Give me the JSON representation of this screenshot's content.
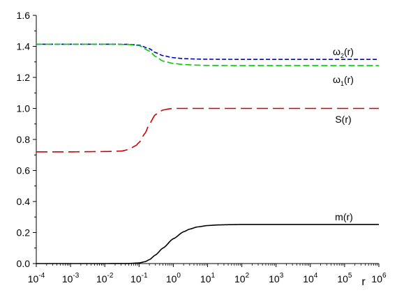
{
  "chart_data": {
    "type": "line",
    "x_scale": "log",
    "xlim": [
      0.0001,
      1000000
    ],
    "ylim": [
      0,
      1.6
    ],
    "grid": false,
    "xlabel": "r",
    "ylabel": "",
    "x_ticks": [
      {
        "base": "10",
        "exp": "-4"
      },
      {
        "base": "10",
        "exp": "-3"
      },
      {
        "base": "10",
        "exp": "-2"
      },
      {
        "base": "10",
        "exp": "-1"
      },
      {
        "base": "10",
        "exp": "0"
      },
      {
        "base": "10",
        "exp": "1"
      },
      {
        "base": "10",
        "exp": "2"
      },
      {
        "base": "10",
        "exp": "3"
      },
      {
        "base": "10",
        "exp": "4"
      },
      {
        "base": "10",
        "exp": "5"
      },
      {
        "base": "10",
        "exp": "6"
      }
    ],
    "y_ticks": [
      "0.0",
      "0.2",
      "0.4",
      "0.6",
      "0.8",
      "1.0",
      "1.2",
      "1.4",
      "1.6"
    ],
    "series": [
      {
        "name": "ω2(r)",
        "label_main": "ω",
        "label_sub": "2",
        "label_tail": "(r)",
        "color": "#0000cc",
        "dash": "6,3",
        "x": [
          0.0001,
          0.001,
          0.01,
          0.05,
          0.1,
          0.2,
          0.3,
          0.5,
          1,
          2,
          5,
          10,
          100,
          1000,
          10000,
          100000,
          1000000
        ],
        "y": [
          1.414,
          1.414,
          1.414,
          1.413,
          1.408,
          1.385,
          1.36,
          1.34,
          1.327,
          1.321,
          1.318,
          1.317,
          1.316,
          1.316,
          1.316,
          1.316,
          1.316
        ]
      },
      {
        "name": "ω1(r)",
        "label_main": "ω",
        "label_sub": "1",
        "label_tail": "(r)",
        "color": "#00cc00",
        "dash": "9,4",
        "x": [
          0.0001,
          0.001,
          0.01,
          0.05,
          0.1,
          0.2,
          0.3,
          0.5,
          1,
          2,
          5,
          10,
          100,
          1000,
          10000,
          100000,
          1000000
        ],
        "y": [
          1.414,
          1.414,
          1.414,
          1.412,
          1.405,
          1.37,
          1.335,
          1.305,
          1.29,
          1.283,
          1.279,
          1.277,
          1.276,
          1.276,
          1.276,
          1.276,
          1.276
        ]
      },
      {
        "name": "S(r)",
        "label_main": "S(r)",
        "label_sub": "",
        "label_tail": "",
        "color": "#cc0000",
        "dash": "16,7",
        "x": [
          0.0001,
          0.001,
          0.01,
          0.03,
          0.05,
          0.08,
          0.1,
          0.15,
          0.2,
          0.3,
          0.5,
          0.8,
          1,
          10,
          100,
          1000,
          10000,
          100000,
          1000000
        ],
        "y": [
          0.72,
          0.72,
          0.722,
          0.725,
          0.735,
          0.76,
          0.78,
          0.84,
          0.9,
          0.96,
          0.99,
          0.998,
          1.0,
          1.0,
          1.0,
          1.0,
          1.0,
          1.0,
          1.0
        ]
      },
      {
        "name": "m(r)",
        "label_main": "m(r)",
        "label_sub": "",
        "label_tail": "",
        "color": "#000000",
        "dash": "",
        "x": [
          0.0001,
          0.001,
          0.01,
          0.05,
          0.1,
          0.15,
          0.2,
          0.3,
          0.5,
          1,
          2,
          3,
          5,
          10,
          20,
          50,
          100,
          1000,
          10000,
          100000,
          1000000
        ],
        "y": [
          0.0,
          0.0,
          0.0,
          0.0005,
          0.004,
          0.012,
          0.025,
          0.055,
          0.1,
          0.16,
          0.205,
          0.222,
          0.236,
          0.245,
          0.249,
          0.251,
          0.252,
          0.252,
          0.252,
          0.252,
          0.252
        ]
      }
    ]
  }
}
